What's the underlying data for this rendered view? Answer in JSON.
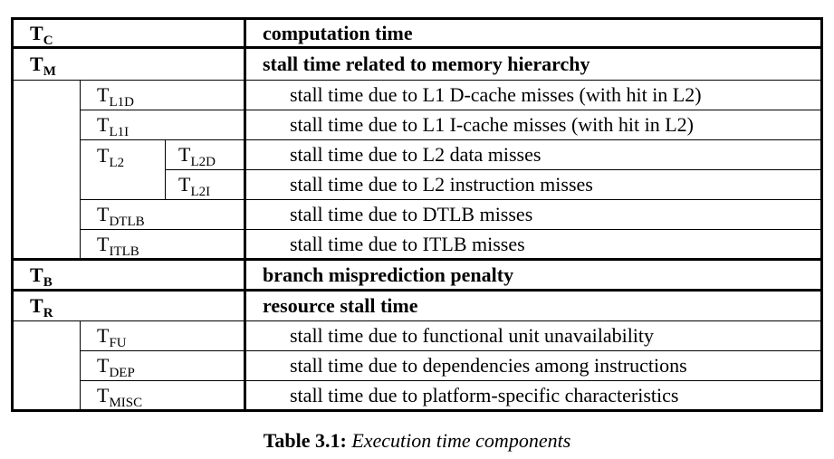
{
  "table": {
    "rows": [
      {
        "sym": "T",
        "sub": "C",
        "desc": "computation time"
      },
      {
        "sym": "T",
        "sub": "M",
        "desc": "stall time related to memory hierarchy"
      },
      {
        "sym": "T",
        "sub": "L1D",
        "desc": "stall time due to L1 D-cache misses (with hit in L2)"
      },
      {
        "sym": "T",
        "sub": "L1I",
        "desc": "stall time due to L1 I-cache misses (with hit in L2)"
      },
      {
        "sym": "T",
        "sub": "L2",
        "sym2": "T",
        "sub2": "L2D",
        "desc": "stall time due to L2 data misses"
      },
      {
        "sym2": "T",
        "sub2": "L2I",
        "desc": "stall time due to L2 instruction misses"
      },
      {
        "sym": "T",
        "sub": "DTLB",
        "desc": "stall time due to DTLB misses"
      },
      {
        "sym": "T",
        "sub": "ITLB",
        "desc": "stall time due to ITLB misses"
      },
      {
        "sym": "T",
        "sub": "B",
        "desc": "branch misprediction penalty"
      },
      {
        "sym": "T",
        "sub": "R",
        "desc": "resource stall time"
      },
      {
        "sym": "T",
        "sub": "FU",
        "desc": "stall time due to functional unit unavailability"
      },
      {
        "sym": "T",
        "sub": "DEP",
        "desc": "stall time due to dependencies among instructions"
      },
      {
        "sym": "T",
        "sub": "MISC",
        "desc": "stall time due to platform-specific characteristics"
      }
    ]
  },
  "caption": {
    "label": "Table 3.1:",
    "text": "Execution time components"
  }
}
